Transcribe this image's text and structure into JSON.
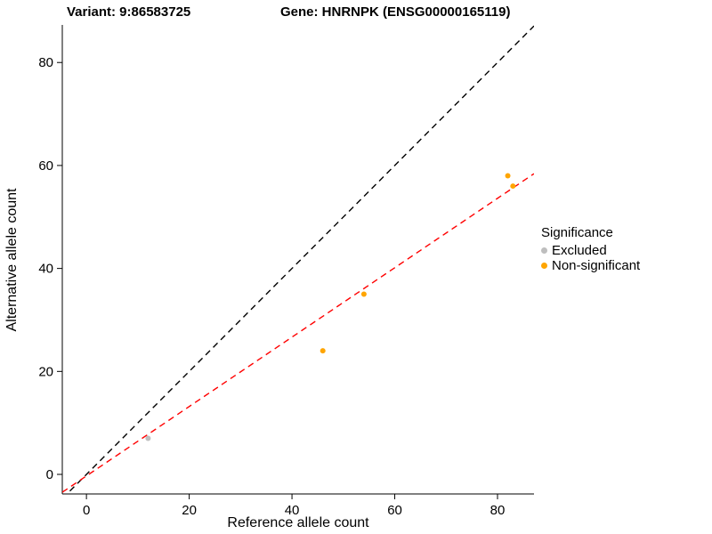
{
  "titles": {
    "left": "Variant: 9:86583725",
    "right": "Gene: HNRNPK (ENSG00000165119)"
  },
  "chart_data": {
    "type": "scatter",
    "xlabel": "Reference allele count",
    "ylabel": "Alternative allele count",
    "xlim": [
      -4.7,
      87.1
    ],
    "ylim": [
      -3.8,
      87.3
    ],
    "xticks": [
      0,
      20,
      40,
      60,
      80
    ],
    "yticks": [
      0,
      20,
      40,
      60,
      80
    ],
    "grid": false,
    "series": [
      {
        "name": "Excluded",
        "color": "#BEBEBE",
        "points": [
          [
            12,
            7
          ]
        ]
      },
      {
        "name": "Non-significant",
        "color": "#FFA500",
        "points": [
          [
            46,
            24
          ],
          [
            54,
            35
          ],
          [
            82,
            58
          ],
          [
            83,
            56
          ]
        ]
      }
    ],
    "lines": [
      {
        "name": "identity",
        "color": "#000000",
        "dashed": true,
        "slope": 1,
        "intercept": 0
      },
      {
        "name": "fit",
        "color": "#FF0000",
        "dashed": true,
        "slope": 0.674,
        "intercept": -0.3
      }
    ],
    "legend": {
      "title": "Significance",
      "position": "right"
    }
  }
}
